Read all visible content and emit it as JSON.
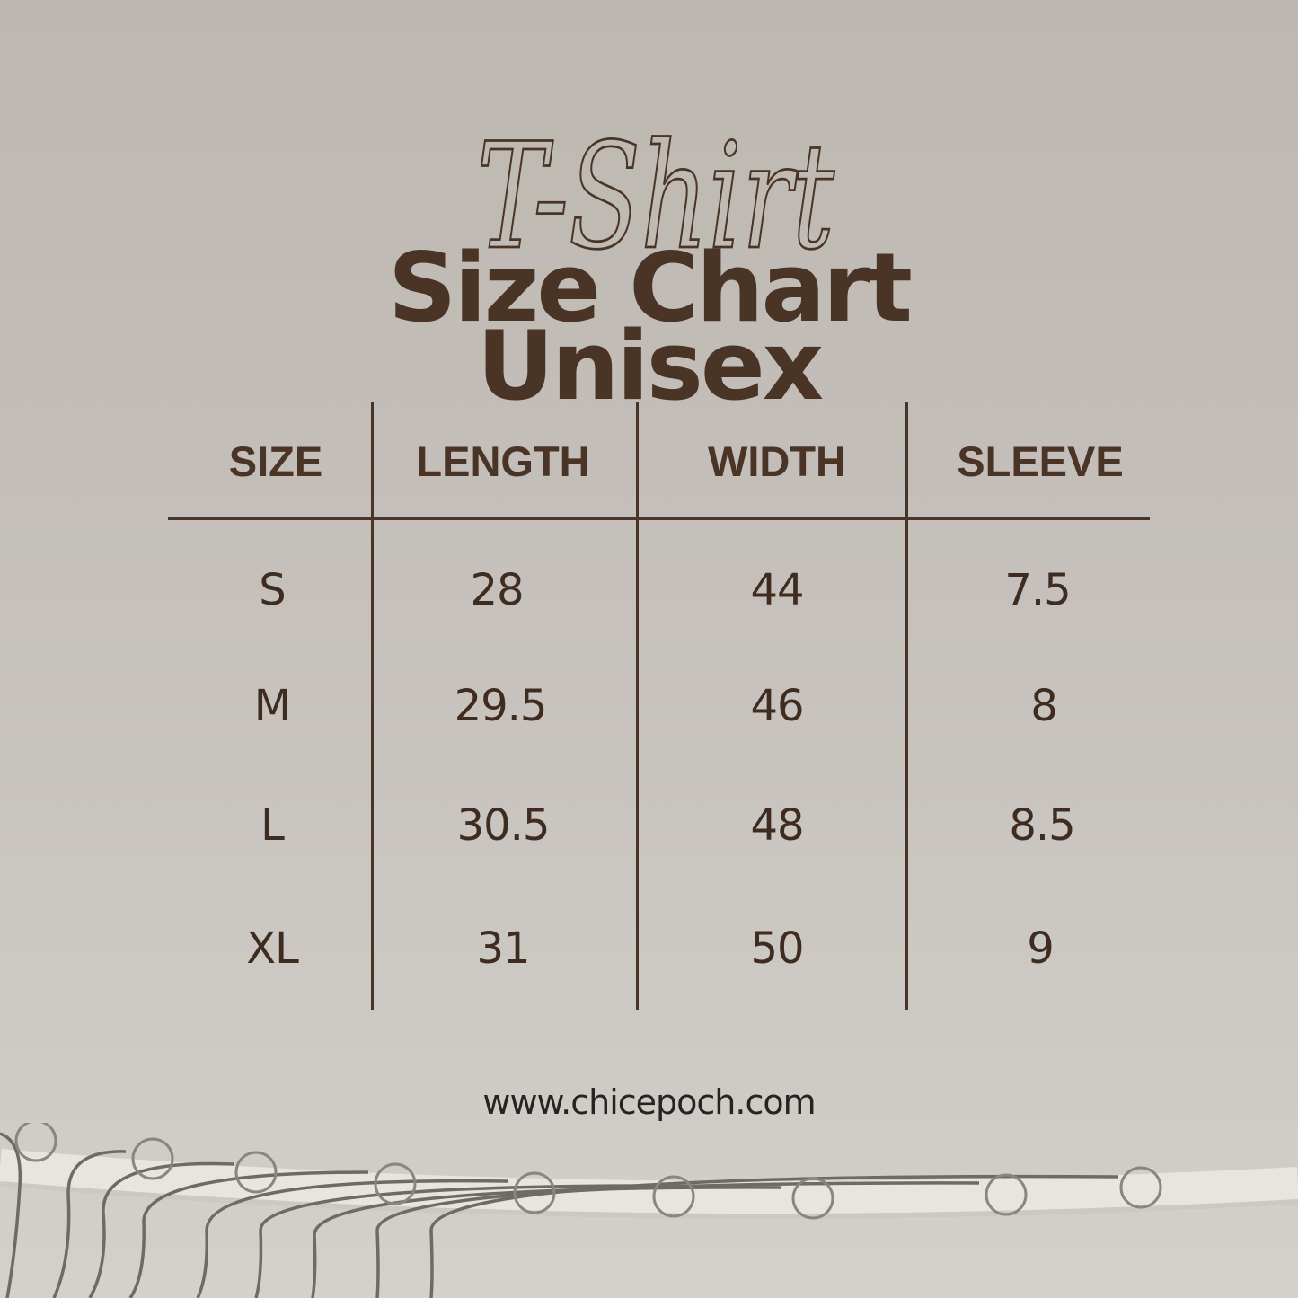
{
  "title": {
    "script": "T-Shirt",
    "line1": "Size Chart",
    "line2": "Unisex"
  },
  "table": {
    "headers": [
      "SIZE",
      "LENGTH",
      "WIDTH",
      "SLEEVE"
    ],
    "rows": [
      [
        "S",
        "28",
        "44",
        "7.5"
      ],
      [
        "M",
        "29.5",
        "46",
        "8"
      ],
      [
        "L",
        "30.5",
        "48",
        "8.5"
      ],
      [
        "XL",
        "31",
        "50",
        "9"
      ]
    ]
  },
  "footer": {
    "url": "www.chicepoch.com"
  },
  "colors": {
    "text": "#4a3426",
    "background": "#c4bfba"
  }
}
